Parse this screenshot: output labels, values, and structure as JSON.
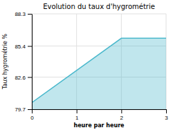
{
  "chart_data": {
    "type": "area",
    "title": "Evolution du taux d'hygrométrie",
    "x_label": "heure par heure",
    "y_label": "Taux hygrométrie %",
    "x": [
      0,
      2,
      3
    ],
    "values": [
      80.3,
      86.1,
      86.1
    ],
    "color": "#4ab8cc",
    "xlim": [
      0,
      3
    ],
    "ylim": [
      79.7,
      88.3
    ],
    "xticks": [
      0,
      1,
      2,
      3
    ],
    "yticks": [
      79.7,
      82.6,
      85.4,
      88.3
    ],
    "grid": true
  }
}
